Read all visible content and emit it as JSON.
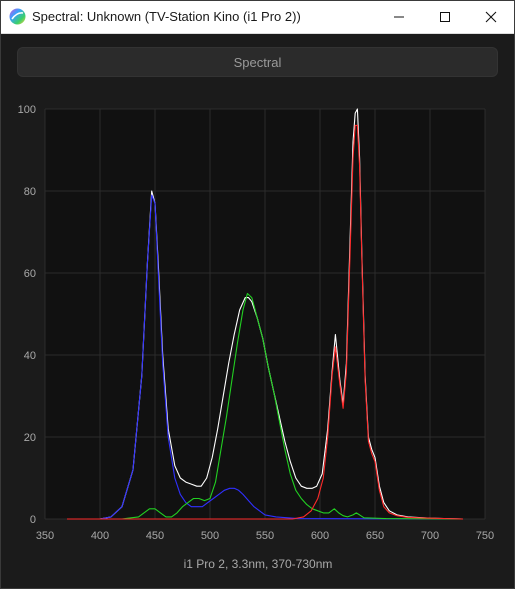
{
  "window": {
    "title": "Spectral: Unknown (TV-Station Kino (i1 Pro 2))",
    "controls": {
      "minimize": "minimize-icon",
      "maximize": "maximize-icon",
      "close": "close-icon"
    }
  },
  "toolbar": {
    "mode_label": "Spectral"
  },
  "colors": {
    "background": "#111111",
    "grid": "#2c2c2c",
    "white": "#ffffff",
    "red": "#ff2a2a",
    "green": "#22d022",
    "blue": "#3030ff"
  },
  "chart_data": {
    "type": "line",
    "xlabel": "i1 Pro 2, 3.3nm, 370-730nm",
    "ylabel": "",
    "xlim": [
      350,
      750
    ],
    "ylim": [
      0,
      100
    ],
    "x_ticks": [
      350,
      400,
      450,
      500,
      550,
      600,
      650,
      700,
      750
    ],
    "y_ticks": [
      0,
      20,
      40,
      60,
      80,
      100
    ],
    "grid": true,
    "series": [
      {
        "color": "white",
        "points": [
          [
            370,
            0
          ],
          [
            400,
            0
          ],
          [
            410,
            0.5
          ],
          [
            420,
            3
          ],
          [
            430,
            12
          ],
          [
            438,
            35
          ],
          [
            443,
            62
          ],
          [
            447,
            80
          ],
          [
            450,
            77
          ],
          [
            453,
            62
          ],
          [
            457,
            40
          ],
          [
            462,
            22
          ],
          [
            468,
            13
          ],
          [
            473,
            10
          ],
          [
            478,
            9
          ],
          [
            483,
            8.5
          ],
          [
            488,
            8
          ],
          [
            492,
            8
          ],
          [
            497,
            10
          ],
          [
            502,
            15
          ],
          [
            507,
            22
          ],
          [
            512,
            30
          ],
          [
            517,
            38
          ],
          [
            522,
            45
          ],
          [
            527,
            51
          ],
          [
            532,
            54
          ],
          [
            535,
            54
          ],
          [
            538,
            53
          ],
          [
            543,
            49
          ],
          [
            548,
            44
          ],
          [
            553,
            37
          ],
          [
            558,
            31
          ],
          [
            563,
            25
          ],
          [
            568,
            19
          ],
          [
            573,
            14
          ],
          [
            578,
            10
          ],
          [
            583,
            8
          ],
          [
            588,
            7.5
          ],
          [
            593,
            7.5
          ],
          [
            597,
            8
          ],
          [
            602,
            11
          ],
          [
            607,
            22
          ],
          [
            611,
            36
          ],
          [
            614,
            45
          ],
          [
            618,
            34
          ],
          [
            621,
            28
          ],
          [
            624,
            38
          ],
          [
            627,
            65
          ],
          [
            630,
            92
          ],
          [
            632,
            99
          ],
          [
            634,
            100
          ],
          [
            636,
            88
          ],
          [
            638,
            65
          ],
          [
            641,
            35
          ],
          [
            644,
            20
          ],
          [
            647,
            17
          ],
          [
            650,
            15
          ],
          [
            654,
            8
          ],
          [
            658,
            4
          ],
          [
            663,
            2
          ],
          [
            670,
            1
          ],
          [
            680,
            0.5
          ],
          [
            700,
            0.2
          ],
          [
            730,
            0
          ]
        ]
      },
      {
        "color": "blue",
        "points": [
          [
            370,
            0
          ],
          [
            400,
            0
          ],
          [
            410,
            0.5
          ],
          [
            420,
            3
          ],
          [
            430,
            12
          ],
          [
            438,
            35
          ],
          [
            443,
            62
          ],
          [
            447,
            79
          ],
          [
            450,
            77
          ],
          [
            453,
            60
          ],
          [
            457,
            38
          ],
          [
            462,
            20
          ],
          [
            468,
            10
          ],
          [
            473,
            6
          ],
          [
            478,
            4
          ],
          [
            483,
            3
          ],
          [
            488,
            3
          ],
          [
            493,
            3
          ],
          [
            498,
            4
          ],
          [
            503,
            5
          ],
          [
            508,
            6
          ],
          [
            513,
            7
          ],
          [
            518,
            7.5
          ],
          [
            522,
            7.5
          ],
          [
            526,
            7
          ],
          [
            530,
            6
          ],
          [
            535,
            4.5
          ],
          [
            540,
            3
          ],
          [
            545,
            2
          ],
          [
            550,
            1
          ],
          [
            560,
            0.5
          ],
          [
            580,
            0.1
          ],
          [
            730,
            0
          ]
        ]
      },
      {
        "color": "green",
        "points": [
          [
            370,
            0
          ],
          [
            420,
            0
          ],
          [
            435,
            0.5
          ],
          [
            445,
            2.5
          ],
          [
            450,
            2.5
          ],
          [
            455,
            1.5
          ],
          [
            460,
            0.5
          ],
          [
            465,
            0.5
          ],
          [
            470,
            1.5
          ],
          [
            475,
            3
          ],
          [
            480,
            4
          ],
          [
            485,
            5
          ],
          [
            490,
            5
          ],
          [
            495,
            4.5
          ],
          [
            500,
            5
          ],
          [
            505,
            9
          ],
          [
            510,
            17
          ],
          [
            515,
            25
          ],
          [
            520,
            34
          ],
          [
            525,
            43
          ],
          [
            530,
            51
          ],
          [
            534,
            55
          ],
          [
            538,
            54
          ],
          [
            543,
            49
          ],
          [
            548,
            44
          ],
          [
            553,
            37
          ],
          [
            558,
            31
          ],
          [
            563,
            24
          ],
          [
            568,
            17
          ],
          [
            573,
            11
          ],
          [
            578,
            7
          ],
          [
            583,
            5
          ],
          [
            588,
            3.5
          ],
          [
            593,
            2.5
          ],
          [
            598,
            2
          ],
          [
            603,
            1.5
          ],
          [
            608,
            1.5
          ],
          [
            613,
            2.5
          ],
          [
            617,
            1.5
          ],
          [
            621,
            0.8
          ],
          [
            625,
            0.5
          ],
          [
            630,
            1
          ],
          [
            633,
            1.5
          ],
          [
            636,
            1
          ],
          [
            640,
            0.3
          ],
          [
            660,
            0.1
          ],
          [
            730,
            0
          ]
        ]
      },
      {
        "color": "red",
        "points": [
          [
            370,
            0
          ],
          [
            575,
            0
          ],
          [
            585,
            0.5
          ],
          [
            592,
            2
          ],
          [
            598,
            5
          ],
          [
            603,
            10
          ],
          [
            607,
            20
          ],
          [
            611,
            35
          ],
          [
            614,
            42
          ],
          [
            618,
            33
          ],
          [
            621,
            27
          ],
          [
            624,
            36
          ],
          [
            627,
            62
          ],
          [
            630,
            88
          ],
          [
            632,
            96
          ],
          [
            634,
            96
          ],
          [
            636,
            86
          ],
          [
            638,
            64
          ],
          [
            641,
            34
          ],
          [
            644,
            19
          ],
          [
            647,
            16
          ],
          [
            650,
            14
          ],
          [
            654,
            7
          ],
          [
            658,
            3
          ],
          [
            663,
            1.5
          ],
          [
            670,
            0.8
          ],
          [
            680,
            0.4
          ],
          [
            700,
            0.2
          ],
          [
            730,
            0
          ]
        ]
      }
    ]
  }
}
